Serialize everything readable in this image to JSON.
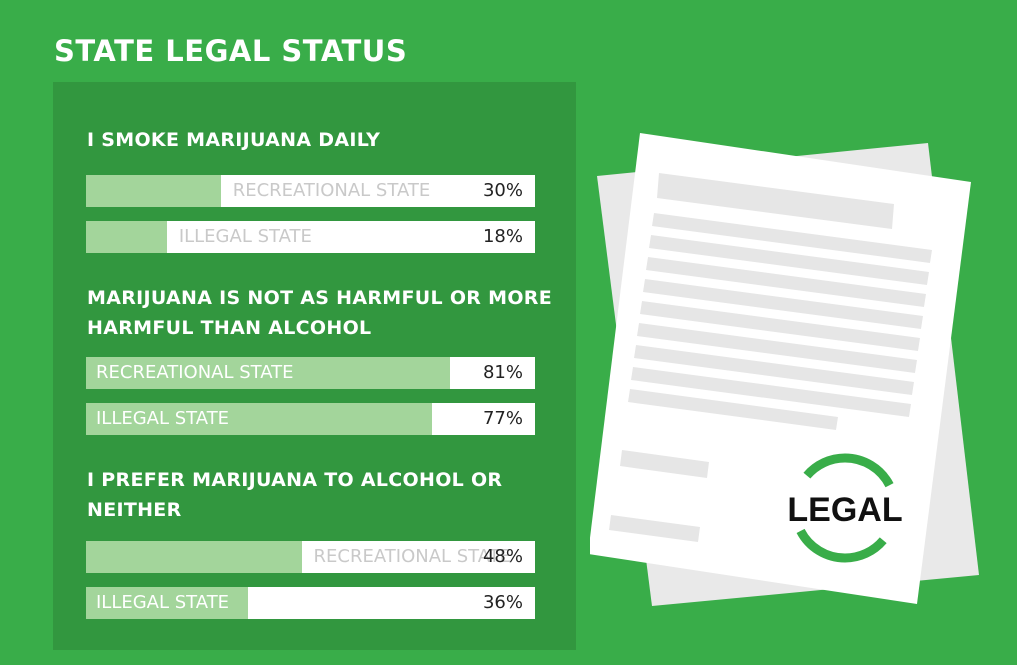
{
  "title": "STATE LEGAL STATUS",
  "colors": {
    "background": "#39ad49",
    "panel": "#32973f",
    "bar_fill": "#a3d59b",
    "bar_track": "#ffffff"
  },
  "chart_data": {
    "type": "bar",
    "orientation": "horizontal",
    "unit": "%",
    "xlim": [
      0,
      100
    ],
    "groups": [
      {
        "question": "I SMOKE MARIJUANA DAILY",
        "bars": [
          {
            "label": "RECREATIONAL STATE",
            "value": 30,
            "display": "30%"
          },
          {
            "label": "ILLEGAL STATE",
            "value": 18,
            "display": "18%"
          }
        ]
      },
      {
        "question": "MARIJUANA IS NOT AS HARMFUL OR MORE HARMFUL THAN ALCOHOL",
        "bars": [
          {
            "label": "RECREATIONAL STATE",
            "value": 81,
            "display": "81%"
          },
          {
            "label": "ILLEGAL STATE",
            "value": 77,
            "display": "77%"
          }
        ]
      },
      {
        "question": "I PREFER MARIJUANA TO ALCOHOL OR NEITHER",
        "bars": [
          {
            "label": "RECREATIONAL STATE",
            "value": 48,
            "display": "48%"
          },
          {
            "label": "ILLEGAL STATE",
            "value": 36,
            "display": "36%"
          }
        ]
      }
    ]
  },
  "document_illustration": {
    "stamp_text": "LEGAL",
    "stamp_ring_color": "#39ad49"
  }
}
